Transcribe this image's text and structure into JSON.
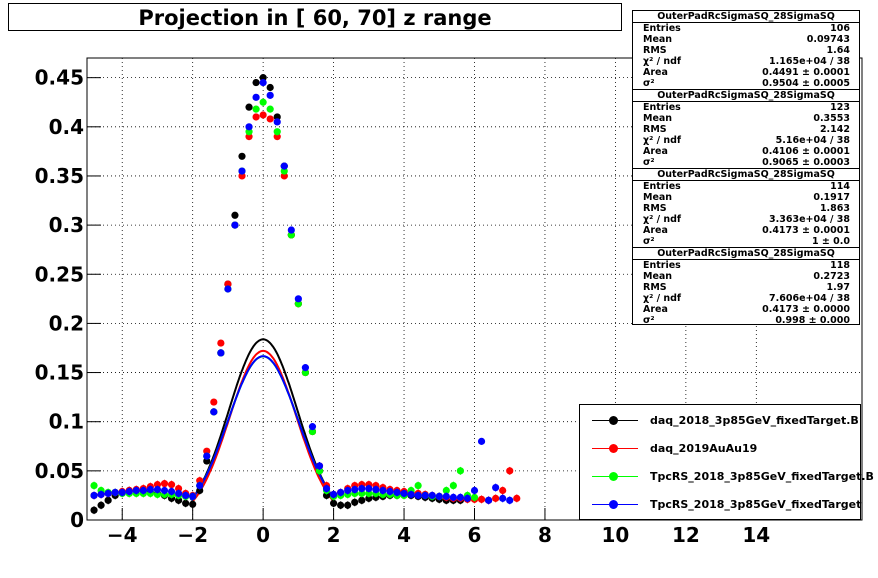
{
  "title": "Projection in [  60,  70] z range",
  "stats": [
    {
      "name": "OuterPadRcSigmaSQ_28SigmaSQ",
      "entries": "106",
      "mean": "0.09743",
      "rms": "1.64",
      "chi2": "1.165e+04 / 38",
      "area": "0.4491 ± 0.0001",
      "sigma2": "0.9504 ± 0.0005"
    },
    {
      "name": "OuterPadRcSigmaSQ_28SigmaSQ",
      "entries": "123",
      "mean": "0.3553",
      "rms": "2.142",
      "chi2": "5.16e+04 / 38",
      "area": "0.4106 ± 0.0001",
      "sigma2": "0.9065 ± 0.0003"
    },
    {
      "name": "OuterPadRcSigmaSQ_28SigmaSQ",
      "entries": "114",
      "mean": "0.1917",
      "rms": "1.863",
      "chi2": "3.363e+04 / 38",
      "area": "0.4173 ± 0.0001",
      "sigma2": "1 ± 0.0"
    },
    {
      "name": "OuterPadRcSigmaSQ_28SigmaSQ",
      "entries": "118",
      "mean": "0.2723",
      "rms": "1.97",
      "chi2": "7.606e+04 / 38",
      "area": "0.4173 ± 0.0000",
      "sigma2": "0.998 ± 0.000"
    }
  ],
  "stat_labels": {
    "entries": "Entries",
    "mean": "Mean",
    "rms": "RMS",
    "chi2": "χ² / ndf",
    "area": "Area",
    "sigma2": "σ²"
  },
  "legend": [
    {
      "label": "daq_2018_3p85GeV_fixedTarget.B",
      "color": "#000000"
    },
    {
      "label": "daq_2019AuAu19",
      "color": "#ff0000"
    },
    {
      "label": "TpcRS_2018_3p85GeV_fixedTarget.B",
      "color": "#00ff00"
    },
    {
      "label": "TpcRS_2018_3p85GeV_fixedTarget",
      "color": "#0000ff"
    }
  ],
  "chart_data": {
    "type": "scatter",
    "title": "Projection in [  60,  70] z range",
    "xlabel": "",
    "ylabel": "",
    "xlim": [
      -5,
      17
    ],
    "ylim": [
      0,
      0.47
    ],
    "grid": true,
    "xticks": [
      -4,
      -2,
      0,
      2,
      4,
      6,
      8,
      10,
      12,
      14
    ],
    "yticks": [
      0,
      0.05,
      0.1,
      0.15,
      0.2,
      0.25,
      0.3,
      0.35,
      0.4,
      0.45
    ],
    "ytick_labels": [
      "0",
      "0.05",
      "0.1",
      "0.15",
      "0.2",
      "0.25",
      "0.3",
      "0.35",
      "0.4",
      "0.45"
    ],
    "series": [
      {
        "name": "daq_2018_3p85GeV_fixedTarget.B",
        "color": "#000000",
        "x": [
          -4.8,
          -4.6,
          -4.4,
          -4.2,
          -4.0,
          -3.8,
          -3.6,
          -3.4,
          -3.2,
          -3.0,
          -2.8,
          -2.6,
          -2.4,
          -2.2,
          -2.0,
          -1.8,
          -1.6,
          -1.4,
          -1.2,
          -1.0,
          -0.8,
          -0.6,
          -0.4,
          -0.2,
          0.0,
          0.2,
          0.4,
          0.6,
          0.8,
          1.0,
          1.2,
          1.4,
          1.6,
          1.8,
          2.0,
          2.2,
          2.4,
          2.6,
          2.8,
          3.0,
          3.2,
          3.4,
          3.6,
          3.8,
          4.0,
          4.2,
          4.4,
          4.6,
          4.8,
          5.0,
          5.2,
          5.4,
          5.6
        ],
        "y": [
          0.01,
          0.015,
          0.02,
          0.025,
          0.028,
          0.03,
          0.03,
          0.03,
          0.028,
          0.027,
          0.025,
          0.022,
          0.02,
          0.017,
          0.016,
          0.03,
          0.06,
          0.11,
          0.17,
          0.24,
          0.31,
          0.37,
          0.42,
          0.445,
          0.45,
          0.44,
          0.41,
          0.36,
          0.29,
          0.22,
          0.15,
          0.09,
          0.05,
          0.025,
          0.017,
          0.015,
          0.015,
          0.018,
          0.02,
          0.022,
          0.023,
          0.024,
          0.025,
          0.025,
          0.026,
          0.025,
          0.024,
          0.023,
          0.022,
          0.021,
          0.02,
          0.02,
          0.02
        ]
      },
      {
        "name": "daq_2019AuAu19",
        "color": "#ff0000",
        "x": [
          -4.8,
          -4.6,
          -4.4,
          -4.2,
          -4.0,
          -3.8,
          -3.6,
          -3.4,
          -3.2,
          -3.0,
          -2.8,
          -2.6,
          -2.4,
          -2.2,
          -2.0,
          -1.8,
          -1.6,
          -1.4,
          -1.2,
          -1.0,
          -0.8,
          -0.6,
          -0.4,
          -0.2,
          0.0,
          0.2,
          0.4,
          0.6,
          0.8,
          1.0,
          1.2,
          1.4,
          1.6,
          1.8,
          2.0,
          2.2,
          2.4,
          2.6,
          2.8,
          3.0,
          3.2,
          3.4,
          3.6,
          3.8,
          4.0,
          4.2,
          4.4,
          4.6,
          4.8,
          5.0,
          5.2,
          5.4,
          5.6,
          5.8,
          6.0,
          6.2,
          6.4,
          6.6,
          6.8,
          7.0,
          7.2
        ],
        "y": [
          0.025,
          0.026,
          0.027,
          0.028,
          0.029,
          0.03,
          0.031,
          0.032,
          0.034,
          0.036,
          0.037,
          0.036,
          0.032,
          0.027,
          0.025,
          0.04,
          0.07,
          0.12,
          0.18,
          0.24,
          0.3,
          0.35,
          0.39,
          0.41,
          0.412,
          0.408,
          0.39,
          0.35,
          0.29,
          0.22,
          0.15,
          0.09,
          0.055,
          0.035,
          0.026,
          0.028,
          0.032,
          0.035,
          0.036,
          0.036,
          0.035,
          0.033,
          0.031,
          0.03,
          0.029,
          0.028,
          0.027,
          0.026,
          0.025,
          0.024,
          0.023,
          0.022,
          0.022,
          0.021,
          0.021,
          0.021,
          0.02,
          0.022,
          0.03,
          0.05,
          0.022
        ]
      },
      {
        "name": "TpcRS_2018_3p85GeV_fixedTarget.B",
        "color": "#00ff00",
        "x": [
          -4.8,
          -4.6,
          -4.4,
          -4.2,
          -4.0,
          -3.8,
          -3.6,
          -3.4,
          -3.2,
          -3.0,
          -2.8,
          -2.6,
          -2.4,
          -2.2,
          -2.0,
          -1.8,
          -1.6,
          -1.4,
          -1.2,
          -1.0,
          -0.8,
          -0.6,
          -0.4,
          -0.2,
          0.0,
          0.2,
          0.4,
          0.6,
          0.8,
          1.0,
          1.2,
          1.4,
          1.6,
          1.8,
          2.0,
          2.2,
          2.4,
          2.6,
          2.8,
          3.0,
          3.2,
          3.4,
          3.6,
          3.8,
          4.0,
          4.2,
          4.4,
          4.6,
          4.8,
          5.0,
          5.2,
          5.4,
          5.6,
          5.8,
          6.0
        ],
        "y": [
          0.035,
          0.03,
          0.028,
          0.028,
          0.027,
          0.027,
          0.027,
          0.027,
          0.027,
          0.026,
          0.026,
          0.026,
          0.025,
          0.024,
          0.024,
          0.035,
          0.065,
          0.11,
          0.17,
          0.235,
          0.3,
          0.355,
          0.395,
          0.418,
          0.425,
          0.418,
          0.395,
          0.355,
          0.29,
          0.22,
          0.15,
          0.09,
          0.05,
          0.03,
          0.024,
          0.025,
          0.026,
          0.027,
          0.027,
          0.027,
          0.027,
          0.026,
          0.026,
          0.025,
          0.025,
          0.03,
          0.035,
          0.025,
          0.024,
          0.024,
          0.03,
          0.035,
          0.05,
          0.025,
          0.023
        ]
      },
      {
        "name": "TpcRS_2018_3p85GeV_fixedTarget",
        "color": "#0000ff",
        "x": [
          -4.8,
          -4.6,
          -4.4,
          -4.2,
          -4.0,
          -3.8,
          -3.6,
          -3.4,
          -3.2,
          -3.0,
          -2.8,
          -2.6,
          -2.4,
          -2.2,
          -2.0,
          -1.8,
          -1.6,
          -1.4,
          -1.2,
          -1.0,
          -0.8,
          -0.6,
          -0.4,
          -0.2,
          0.0,
          0.2,
          0.4,
          0.6,
          0.8,
          1.0,
          1.2,
          1.4,
          1.6,
          1.8,
          2.0,
          2.2,
          2.4,
          2.6,
          2.8,
          3.0,
          3.2,
          3.4,
          3.6,
          3.8,
          4.0,
          4.2,
          4.4,
          4.6,
          4.8,
          5.0,
          5.2,
          5.4,
          5.6,
          5.8,
          6.0,
          6.2,
          6.4,
          6.6,
          6.8,
          7.0
        ],
        "y": [
          0.025,
          0.026,
          0.027,
          0.028,
          0.028,
          0.029,
          0.03,
          0.03,
          0.031,
          0.031,
          0.03,
          0.029,
          0.027,
          0.025,
          0.024,
          0.035,
          0.065,
          0.11,
          0.17,
          0.235,
          0.3,
          0.355,
          0.4,
          0.43,
          0.445,
          0.432,
          0.405,
          0.36,
          0.295,
          0.225,
          0.155,
          0.095,
          0.055,
          0.032,
          0.026,
          0.028,
          0.03,
          0.031,
          0.032,
          0.032,
          0.031,
          0.03,
          0.029,
          0.028,
          0.027,
          0.026,
          0.025,
          0.025,
          0.025,
          0.024,
          0.024,
          0.023,
          0.023,
          0.022,
          0.03,
          0.08,
          0.02,
          0.033,
          0.022,
          0.02
        ]
      }
    ],
    "fits": [
      {
        "series": 0,
        "area": 0.4491,
        "sigma2": 0.9504,
        "mean": 0,
        "color": "#000000"
      },
      {
        "series": 1,
        "area": 0.4106,
        "sigma2": 0.9065,
        "mean": 0,
        "color": "#ff0000"
      },
      {
        "series": 2,
        "area": 0.4173,
        "sigma2": 1.0,
        "mean": 0,
        "color": "#00ff00"
      },
      {
        "series": 3,
        "area": 0.4173,
        "sigma2": 0.998,
        "mean": 0,
        "color": "#0000ff"
      }
    ]
  }
}
